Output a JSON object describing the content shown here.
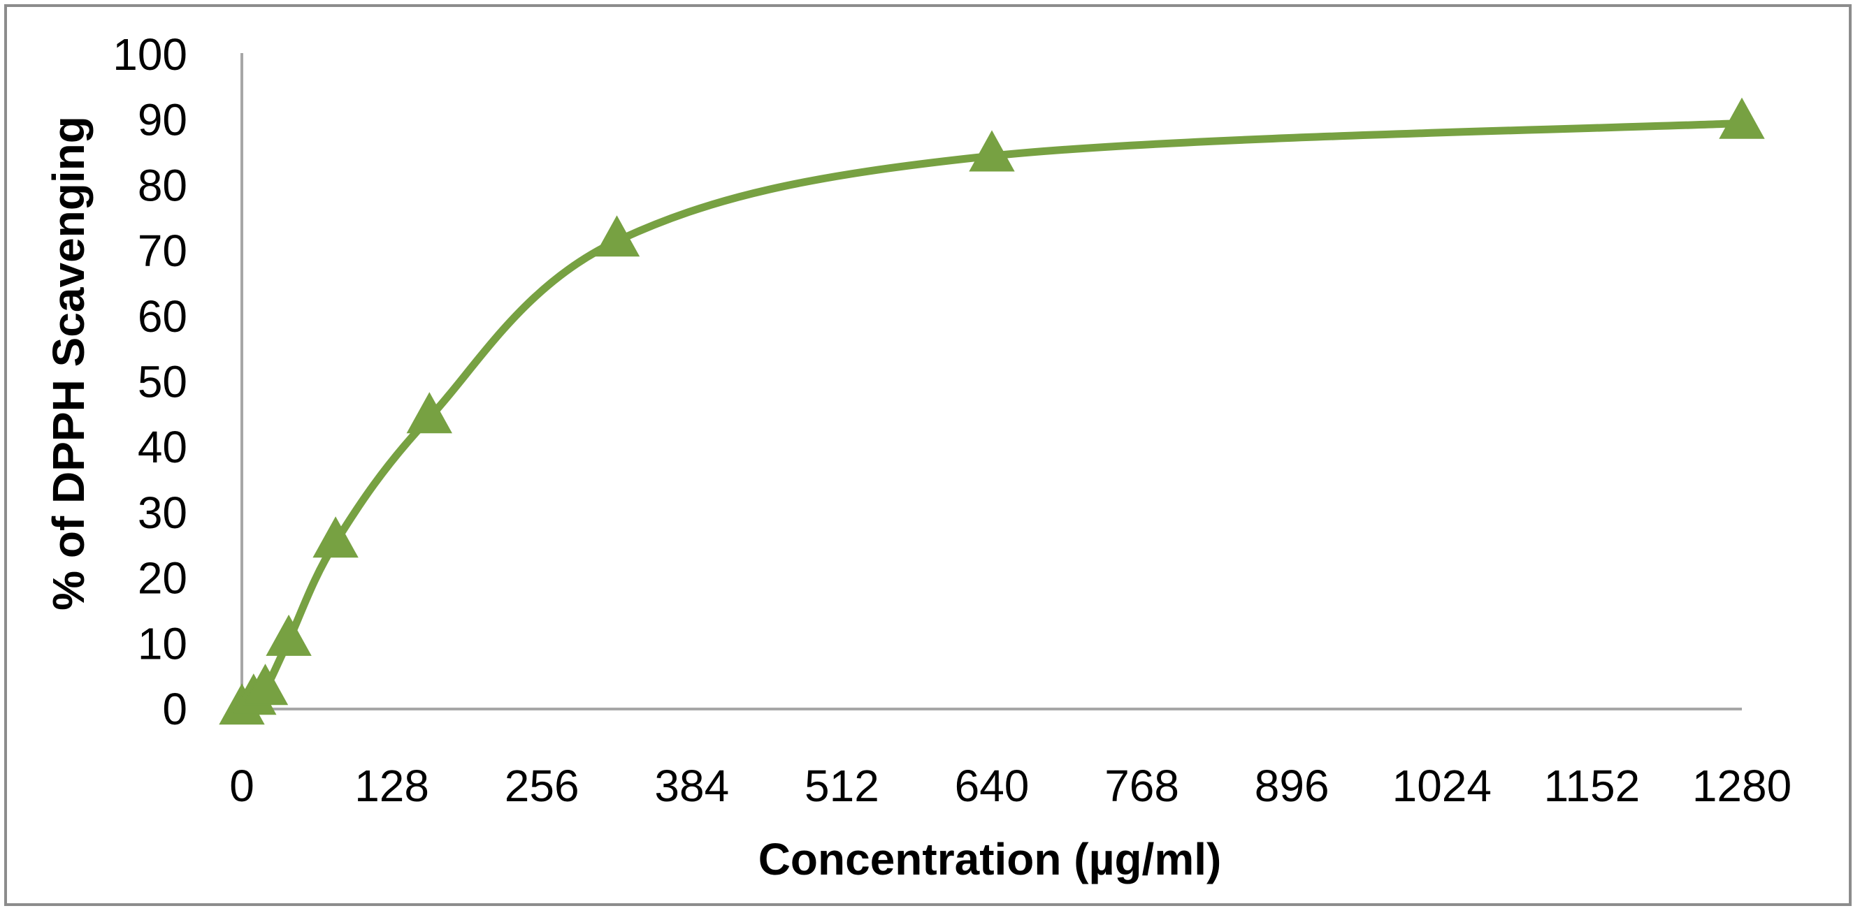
{
  "chart_data": {
    "type": "line",
    "title": "",
    "xlabel": "Concentration (µg/ml)",
    "ylabel": "% of DPPH  Scavenging",
    "xlim": [
      0,
      1280
    ],
    "ylim": [
      0,
      100
    ],
    "x_ticks": [
      "0",
      "128",
      "256",
      "384",
      "512",
      "640",
      "768",
      "896",
      "1024",
      "1152",
      "1280"
    ],
    "y_ticks": [
      "0",
      "10",
      "20",
      "30",
      "40",
      "50",
      "60",
      "70",
      "80",
      "90",
      "100"
    ],
    "grid": false,
    "legend": "none",
    "series": [
      {
        "x": [
          0,
          10,
          20,
          40,
          80,
          160,
          320,
          640,
          1280
        ],
        "y": [
          0,
          1.5,
          3,
          10.5,
          25.5,
          44.5,
          71.5,
          84.5,
          89.5
        ],
        "color": "#77a142",
        "marker": "triangle"
      }
    ]
  }
}
